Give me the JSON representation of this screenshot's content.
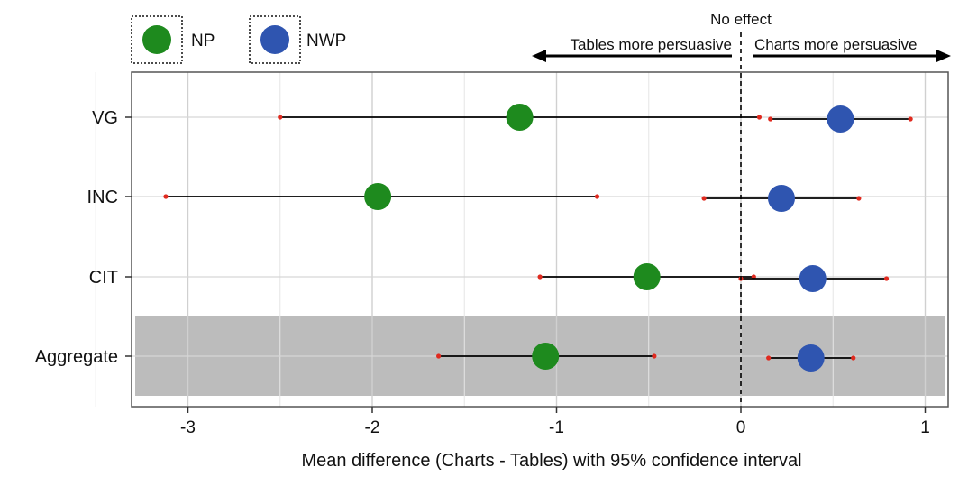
{
  "chart_data": {
    "type": "scatter",
    "xlabel": "Mean difference (Charts - Tables) with 95% confidence interval",
    "xlim": [
      -3.3,
      1.1
    ],
    "x_ticks": [
      -3,
      -2,
      -1,
      0,
      1
    ],
    "x_tick_labels": [
      "-3",
      "-2",
      "-1",
      "0",
      "1"
    ],
    "categories": [
      "VG",
      "INC",
      "CIT",
      "Aggregate"
    ],
    "highlighted_category": "Aggregate",
    "legend_position": "top-left",
    "grid": true,
    "reference_line": {
      "x": 0,
      "label": "No effect"
    },
    "annotations": {
      "left_arrow": "Tables more persuasive",
      "right_arrow": "Charts more persuasive"
    },
    "series": [
      {
        "name": "NP",
        "color": "#1e8a1e",
        "points": [
          {
            "category": "VG",
            "mean": -1.2,
            "ci_low": -2.5,
            "ci_high": 0.1
          },
          {
            "category": "INC",
            "mean": -1.97,
            "ci_low": -3.12,
            "ci_high": -0.78
          },
          {
            "category": "CIT",
            "mean": -0.51,
            "ci_low": -1.09,
            "ci_high": 0.07
          },
          {
            "category": "Aggregate",
            "mean": -1.06,
            "ci_low": -1.64,
            "ci_high": -0.47
          }
        ]
      },
      {
        "name": "NWP",
        "color": "#2f55b0",
        "points": [
          {
            "category": "VG",
            "mean": 0.54,
            "ci_low": 0.16,
            "ci_high": 0.92
          },
          {
            "category": "INC",
            "mean": 0.22,
            "ci_low": -0.2,
            "ci_high": 0.64
          },
          {
            "category": "CIT",
            "mean": 0.39,
            "ci_low": 0.0,
            "ci_high": 0.79
          },
          {
            "category": "Aggregate",
            "mean": 0.38,
            "ci_low": 0.15,
            "ci_high": 0.61
          }
        ]
      }
    ]
  }
}
